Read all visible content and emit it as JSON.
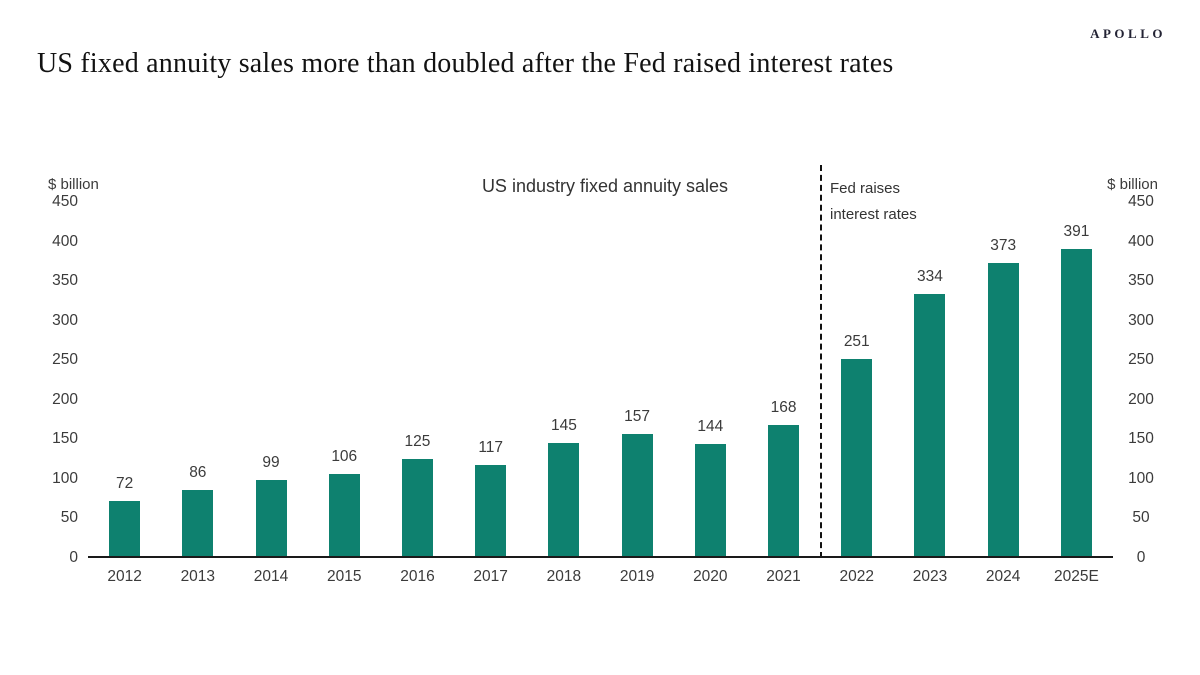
{
  "header": {
    "logo": "APOLLO",
    "title": "US fixed annuity sales more than doubled after the Fed raised interest rates"
  },
  "chart": {
    "title": "US industry fixed annuity sales",
    "left_axis_label": "$ billion",
    "right_axis_label": "$ billion",
    "annotation": {
      "line1": "Fed raises",
      "line2": "interest rates"
    }
  },
  "chart_data": {
    "type": "bar",
    "title": "US industry fixed annuity sales",
    "categories": [
      "2012",
      "2013",
      "2014",
      "2015",
      "2016",
      "2017",
      "2018",
      "2019",
      "2020",
      "2021",
      "2022",
      "2023",
      "2024",
      "2025E"
    ],
    "values": [
      72,
      86,
      99,
      106,
      125,
      117,
      145,
      157,
      144,
      168,
      251,
      334,
      373,
      391
    ],
    "bar_color": "#0E816F",
    "yticks": [
      0,
      50,
      100,
      150,
      200,
      250,
      300,
      350,
      400,
      450
    ],
    "ylim": [
      0,
      450
    ],
    "ylabel_left": "$ billion",
    "ylabel_right": "$ billion",
    "grid": false,
    "legend": false,
    "annotation": "Fed raises interest rates",
    "divider_after_category": "2021",
    "divider_after_index": 9
  }
}
